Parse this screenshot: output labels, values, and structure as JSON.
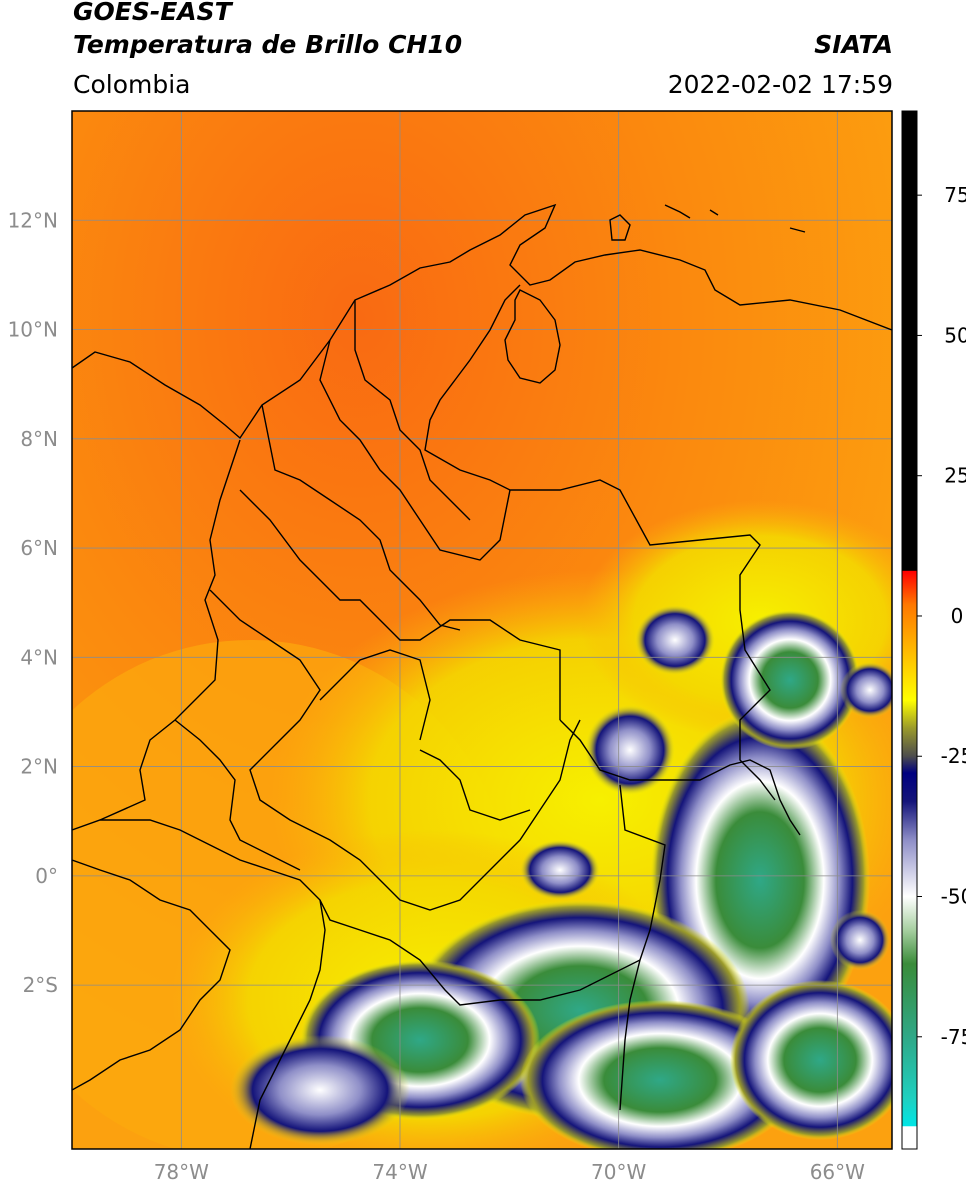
{
  "header": {
    "satellite": "GOES-EAST",
    "product": "Temperatura de Brillo CH10",
    "region": "Colombia",
    "agency": "SIATA",
    "datetime": "2022-02-02 17:59"
  },
  "map": {
    "lon_range": [
      -80,
      -65
    ],
    "lat_range": [
      -5,
      14
    ],
    "lon_ticks": [
      {
        "value": -78,
        "label": "78°W"
      },
      {
        "value": -74,
        "label": "74°W"
      },
      {
        "value": -70,
        "label": "70°W"
      },
      {
        "value": -66,
        "label": "66°W"
      }
    ],
    "lat_ticks": [
      {
        "value": 12,
        "label": "12°N"
      },
      {
        "value": 10,
        "label": "10°N"
      },
      {
        "value": 8,
        "label": "8°N"
      },
      {
        "value": 6,
        "label": "6°N"
      },
      {
        "value": 4,
        "label": "4°N"
      },
      {
        "value": 2,
        "label": "2°N"
      },
      {
        "value": 0,
        "label": "0°"
      },
      {
        "value": -2,
        "label": "2°S"
      }
    ]
  },
  "colorbar": {
    "range": [
      -95,
      90
    ],
    "ticks": [
      {
        "value": 75,
        "label": "75"
      },
      {
        "value": 50,
        "label": "50"
      },
      {
        "value": 25,
        "label": "25"
      },
      {
        "value": 0,
        "label": "0"
      },
      {
        "value": -25,
        "label": "-25"
      },
      {
        "value": -50,
        "label": "-50"
      },
      {
        "value": -75,
        "label": "-75"
      }
    ],
    "stops": [
      {
        "value": -95,
        "color": "#ffffff"
      },
      {
        "value": -91,
        "color": "#ffffff"
      },
      {
        "value": -90.9,
        "color": "#00e5e5"
      },
      {
        "value": -86,
        "color": "#1fd0c0"
      },
      {
        "value": -75,
        "color": "#2fa887"
      },
      {
        "value": -62,
        "color": "#3a8c3a"
      },
      {
        "value": -56,
        "color": "#a6cfa0"
      },
      {
        "value": -50,
        "color": "#ffffff"
      },
      {
        "value": -40,
        "color": "#8f8fc8"
      },
      {
        "value": -33,
        "color": "#14147a"
      },
      {
        "value": -28,
        "color": "#000080"
      },
      {
        "value": -25,
        "color": "#4d4d4d"
      },
      {
        "value": -20,
        "color": "#9a9a2a"
      },
      {
        "value": -15,
        "color": "#ffff00"
      },
      {
        "value": -5,
        "color": "#ffb000"
      },
      {
        "value": 2,
        "color": "#ff7800"
      },
      {
        "value": 8,
        "color": "#ff0000"
      },
      {
        "value": 8.1,
        "color": "#000000"
      },
      {
        "value": 90,
        "color": "#000000"
      }
    ]
  }
}
